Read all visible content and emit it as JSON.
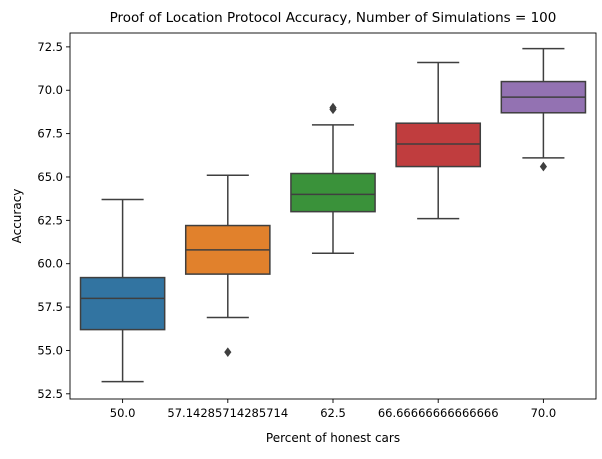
{
  "chart_data": {
    "type": "box",
    "title": "Proof of Location Protocol Accuracy, Number of Simulations = 100",
    "xlabel": "Percent of honest cars",
    "ylabel": "Accuracy",
    "ylim": [
      52.2,
      73.3
    ],
    "yticks": [
      "52.5",
      "55.0",
      "57.5",
      "60.0",
      "62.5",
      "65.0",
      "67.5",
      "70.0",
      "72.5"
    ],
    "grid": false,
    "categories": [
      "50.0",
      "57.14285714285714",
      "62.5",
      "66.66666666666666",
      "70.0"
    ],
    "boxes": [
      {
        "category": "50.0",
        "whisker_low": 53.2,
        "q1": 56.2,
        "median": 58.0,
        "q3": 59.2,
        "whisker_high": 63.7,
        "outliers": [],
        "color": "#3274a1"
      },
      {
        "category": "57.14285714285714",
        "whisker_low": 56.9,
        "q1": 59.4,
        "median": 60.8,
        "q3": 62.2,
        "whisker_high": 65.1,
        "outliers": [
          54.9
        ],
        "color": "#e1812c"
      },
      {
        "category": "62.5",
        "whisker_low": 60.6,
        "q1": 63.0,
        "median": 64.0,
        "q3": 65.2,
        "whisker_high": 68.0,
        "outliers": [
          68.9,
          69.0
        ],
        "color": "#3a923a"
      },
      {
        "category": "66.66666666666666",
        "whisker_low": 62.6,
        "q1": 65.6,
        "median": 66.9,
        "q3": 68.1,
        "whisker_high": 71.6,
        "outliers": [],
        "color": "#c03d3e"
      },
      {
        "category": "70.0",
        "whisker_low": 66.1,
        "q1": 68.7,
        "median": 69.6,
        "q3": 70.5,
        "whisker_high": 72.4,
        "outliers": [
          65.6
        ],
        "color": "#9372b2"
      }
    ]
  }
}
